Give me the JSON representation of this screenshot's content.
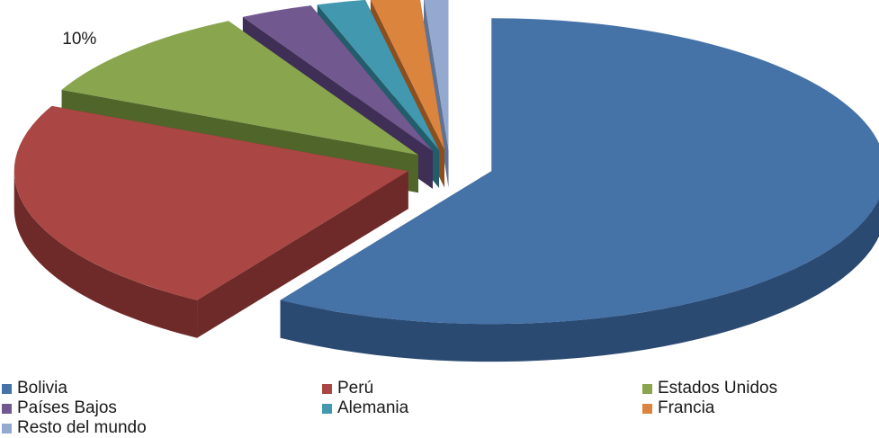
{
  "chart_data": {
    "type": "pie",
    "three_d": true,
    "exploded": true,
    "title": "",
    "legend_position": "bottom",
    "slices": [
      {
        "label": "Bolivia",
        "value": 59,
        "value_label": "59%",
        "color": "#4572A7",
        "side_color": "#2B4A72"
      },
      {
        "label": "Perú",
        "value": 23,
        "value_label": "23%",
        "color": "#AA4643",
        "side_color": "#6E2A28"
      },
      {
        "label": "Estados Unidos",
        "value": 10,
        "value_label": "10%",
        "color": "#89A54E",
        "side_color": "#4F6529"
      },
      {
        "label": "Países Bajos",
        "value": 3,
        "value_label": "3%",
        "color": "#71588F",
        "side_color": "#3F2E55"
      },
      {
        "label": "Alemania",
        "value": 2,
        "value_label": "2%",
        "color": "#4198AF",
        "side_color": "#235C6B"
      },
      {
        "label": "Francia",
        "value": 2,
        "value_label": "2%",
        "color": "#DB843D",
        "side_color": "#8C4E1E"
      },
      {
        "label": "Resto del mundo",
        "value": 1,
        "value_label": "1%",
        "color": "#93A9CF",
        "side_color": "#5E7296"
      }
    ]
  }
}
